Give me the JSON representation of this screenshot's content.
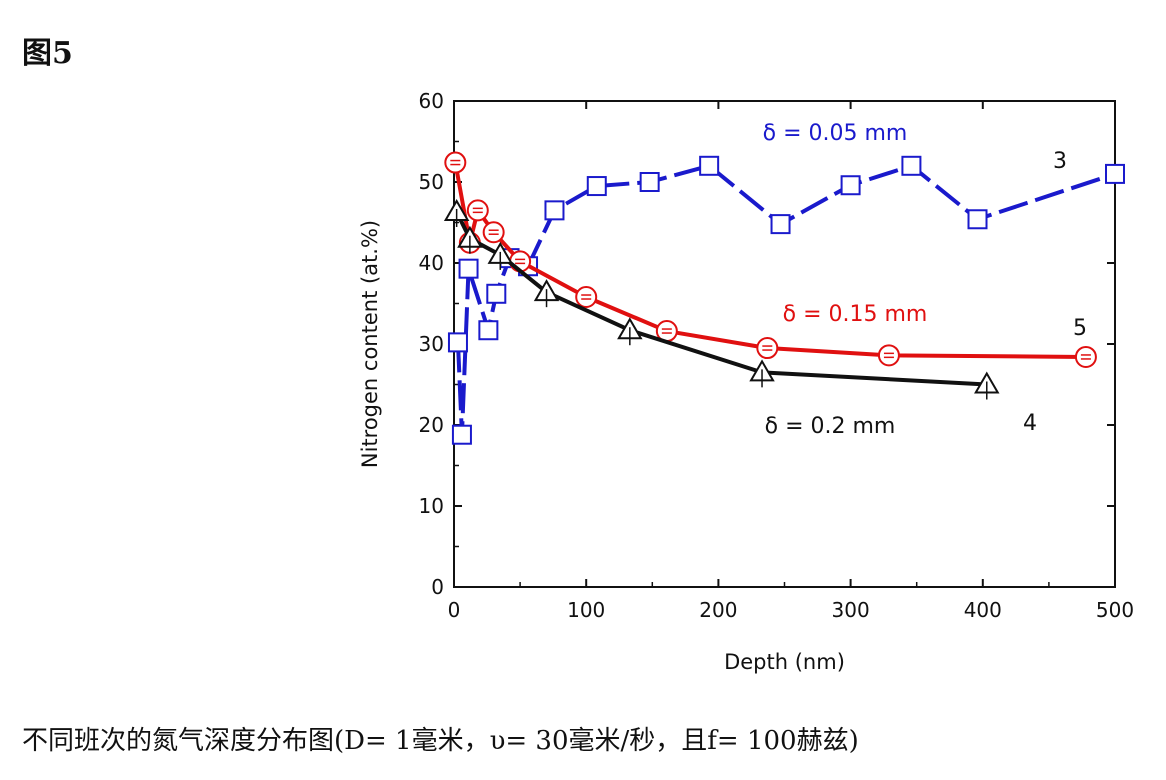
{
  "figure_title": "图5",
  "caption": "不同班次的氮气深度分布图(D= 1毫米，υ= 30毫米/秒，且f= 100赫兹)",
  "chart_data": {
    "type": "line",
    "xlabel": "Depth (nm)",
    "ylabel": "Nitrogen content (at.%)",
    "xlim": [
      0,
      500
    ],
    "ylim": [
      0,
      60
    ],
    "xticks": [
      0,
      100,
      200,
      300,
      400,
      500
    ],
    "yticks": [
      0,
      10,
      20,
      30,
      40,
      50,
      60
    ],
    "grid": false,
    "series": [
      {
        "name": "δ = 0.05 mm",
        "label": "3",
        "color": "#1a1acc",
        "marker": "square",
        "dashed": true,
        "points": [
          [
            3,
            30.2
          ],
          [
            6,
            18.8
          ],
          [
            11,
            39.3
          ],
          [
            26,
            31.7
          ],
          [
            32,
            36.2
          ],
          [
            42,
            40.6
          ],
          [
            56,
            39.6
          ],
          [
            76,
            46.5
          ],
          [
            108,
            49.5
          ],
          [
            148,
            50
          ],
          [
            193,
            52
          ],
          [
            247,
            44.8
          ],
          [
            300,
            49.6
          ],
          [
            346,
            52
          ],
          [
            396,
            45.4
          ],
          [
            500,
            51
          ]
        ]
      },
      {
        "name": "δ = 0.15 mm",
        "label": "5",
        "color": "#e01010",
        "marker": "circle",
        "dashed": false,
        "points": [
          [
            1,
            52.4
          ],
          [
            12,
            42.5
          ],
          [
            18,
            46.5
          ],
          [
            30,
            43.8
          ],
          [
            50,
            40.2
          ],
          [
            100,
            35.8
          ],
          [
            161,
            31.6
          ],
          [
            237,
            29.5
          ],
          [
            329,
            28.6
          ],
          [
            478,
            28.4
          ]
        ]
      },
      {
        "name": "δ = 0.2 mm",
        "label": "4",
        "color": "#111111",
        "marker": "triangle",
        "dashed": false,
        "points": [
          [
            2,
            46.3
          ],
          [
            12,
            43
          ],
          [
            35,
            41
          ],
          [
            70,
            36.4
          ],
          [
            133,
            31.7
          ],
          [
            233,
            26.5
          ],
          [
            403,
            25
          ]
        ]
      }
    ]
  }
}
